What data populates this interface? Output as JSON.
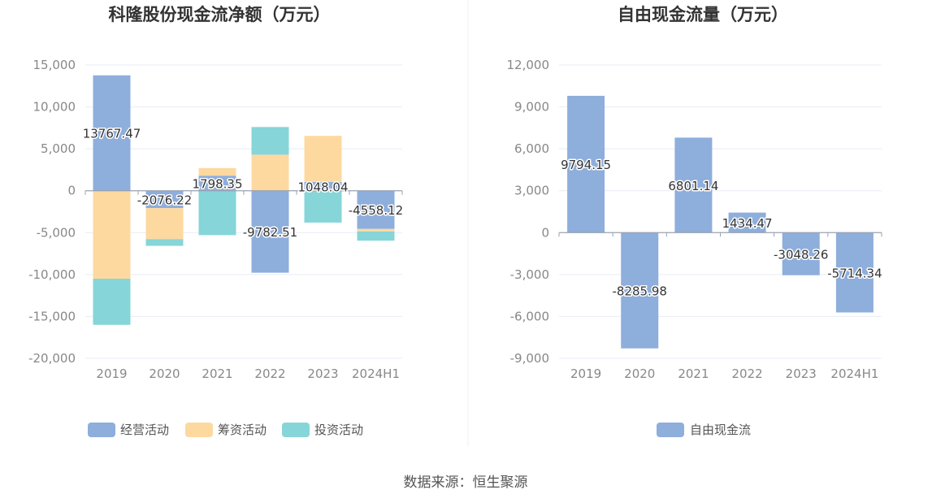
{
  "colors": {
    "operating": "#8eaedc",
    "financing": "#fdd9a0",
    "investing": "#86d5d8",
    "free_cash_flow": "#8eaedc",
    "grid": "#e8ecf4",
    "axis": "#9aa2b1",
    "divider": "#f0f0f0"
  },
  "chart_data": [
    {
      "type": "bar",
      "stacked": true,
      "title": "科隆股份现金流净额（万元）",
      "categories": [
        "2019",
        "2020",
        "2021",
        "2022",
        "2023",
        "2024H1"
      ],
      "ylim": [
        -20000,
        15000
      ],
      "yticks": [
        15000,
        10000,
        5000,
        0,
        -5000,
        -10000,
        -15000,
        -20000
      ],
      "ytick_labels": [
        "15,000",
        "10,000",
        "5,000",
        "0",
        "-5,000",
        "-10,000",
        "-15,000",
        "-20,000"
      ],
      "grid": true,
      "legend_position": "bottom",
      "series": [
        {
          "name": "经营活动",
          "color_key": "operating",
          "values": [
            13767.47,
            -2076.22,
            1798.35,
            -9782.51,
            1048.04,
            -4558.12
          ]
        },
        {
          "name": "筹资活动",
          "color_key": "financing",
          "values": [
            -10500,
            -3700,
            900,
            4300,
            5500,
            -300
          ]
        },
        {
          "name": "投资活动",
          "color_key": "investing",
          "values": [
            -5500,
            -800,
            -5300,
            3300,
            -3800,
            -1100
          ]
        }
      ],
      "data_labels": [
        "13767.47",
        "-2076.22",
        "1798.35",
        "-9782.51",
        "1048.04",
        "-4558.12"
      ]
    },
    {
      "type": "bar",
      "title": "自由现金流量（万元）",
      "categories": [
        "2019",
        "2020",
        "2021",
        "2022",
        "2023",
        "2024H1"
      ],
      "ylim": [
        -9000,
        12000
      ],
      "yticks": [
        12000,
        9000,
        6000,
        3000,
        0,
        -3000,
        -6000,
        -9000
      ],
      "ytick_labels": [
        "12,000",
        "9,000",
        "6,000",
        "3,000",
        "0",
        "-3,000",
        "-6,000",
        "-9,000"
      ],
      "grid": true,
      "legend_position": "bottom",
      "series": [
        {
          "name": "自由现金流",
          "color_key": "free_cash_flow",
          "values": [
            9794.15,
            -8285.98,
            6801.14,
            1434.47,
            -3048.26,
            -5714.34
          ]
        }
      ],
      "data_labels": [
        "9794.15",
        "-8285.98",
        "6801.14",
        "1434.47",
        "-3048.26",
        "-5714.34"
      ]
    }
  ],
  "footer": {
    "source": "数据来源：恒生聚源"
  }
}
